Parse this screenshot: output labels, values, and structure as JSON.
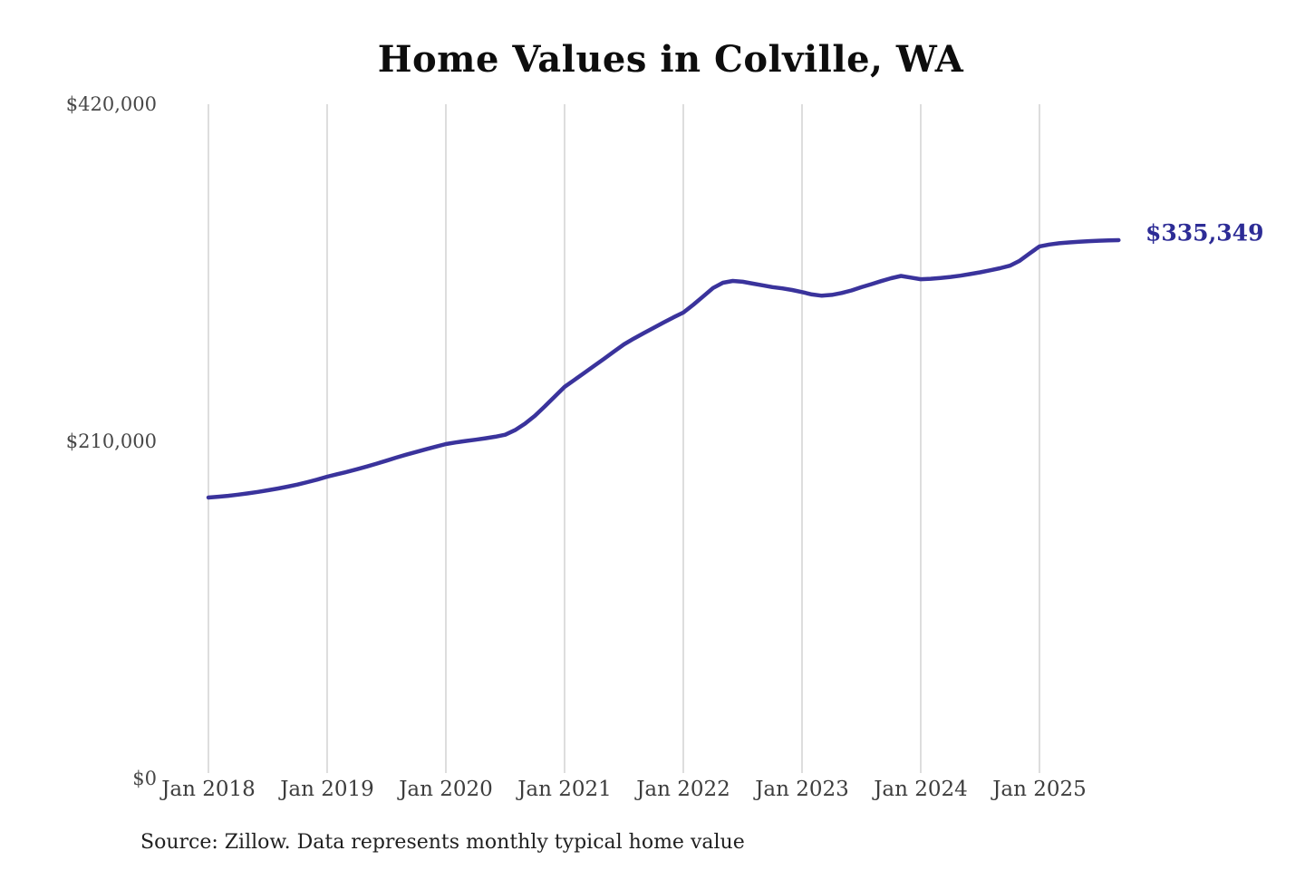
{
  "chart": {
    "title": "Home Values in Colville, WA",
    "end_label": "$335,349",
    "source": "Source: Zillow. Data represents monthly typical home value",
    "colors": {
      "line": "#3a339c",
      "end_label": "#2d2c96",
      "gridline": "#cbcbcb",
      "title": "#0d0d0d",
      "x_tick": "#3d3d3d",
      "y_tick": "#474747",
      "background": "#ffffff"
    }
  },
  "chart_data": {
    "type": "line",
    "title": "Home Values in Colville, WA",
    "xlabel": "",
    "ylabel": "",
    "ylim": [
      0,
      420000
    ],
    "grid": "vertical-only",
    "legend": "none",
    "x_tick_labels": [
      "Jan 2018",
      "Jan 2019",
      "Jan 2020",
      "Jan 2021",
      "Jan 2022",
      "Jan 2023",
      "Jan 2024",
      "Jan 2025"
    ],
    "y_ticks": [
      {
        "label": "$0",
        "value": 0
      },
      {
        "label": "$210,000",
        "value": 210000
      },
      {
        "label": "$420,000",
        "value": 420000
      }
    ],
    "end_annotation": {
      "text": "$335,349",
      "value": 335349
    },
    "series": [
      {
        "name": "Monthly typical home value",
        "start": "2018-01",
        "interval": "monthly",
        "values": [
          175000,
          175500,
          176100,
          176800,
          177600,
          178500,
          179500,
          180600,
          181800,
          183100,
          184600,
          186200,
          188000,
          189500,
          191000,
          192600,
          194300,
          196100,
          198000,
          199900,
          201700,
          203400,
          205100,
          206700,
          208300,
          209300,
          210200,
          211000,
          211900,
          212900,
          214100,
          217000,
          221000,
          226000,
          231800,
          237900,
          243900,
          248300,
          252700,
          257100,
          261500,
          266000,
          270400,
          274000,
          277400,
          280700,
          284000,
          287200,
          290200,
          295000,
          300200,
          305500,
          308800,
          309900,
          309400,
          308300,
          307200,
          306100,
          305300,
          304300,
          303000,
          301500,
          300700,
          301200,
          302400,
          304000,
          306000,
          307900,
          309800,
          311600,
          313000,
          312000,
          311000,
          311300,
          311800,
          312400,
          313200,
          314200,
          315300,
          316500,
          317800,
          319400,
          322500,
          327000,
          331400,
          332600,
          333400,
          333900,
          334300,
          334700,
          335000,
          335200,
          335349
        ]
      }
    ]
  }
}
